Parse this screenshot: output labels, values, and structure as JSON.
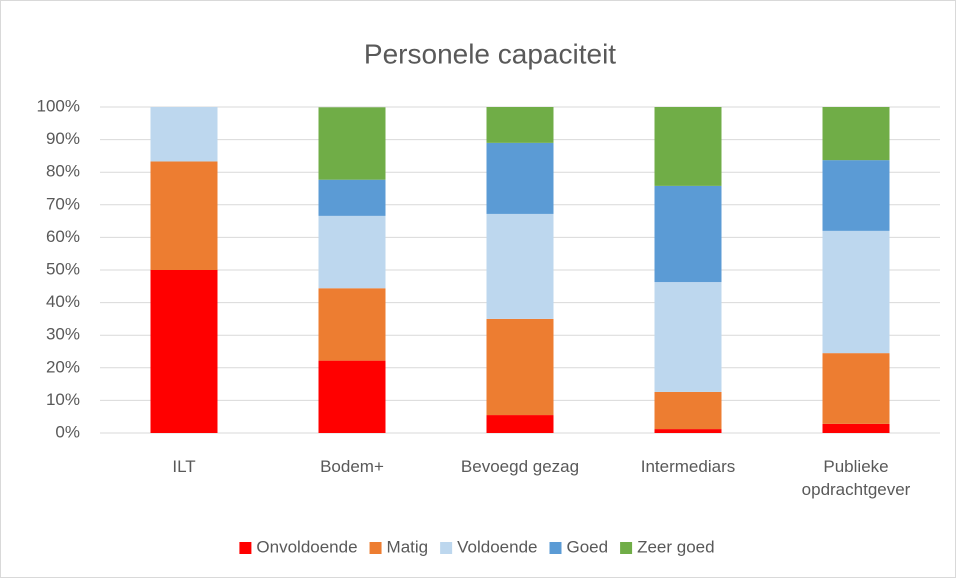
{
  "chart_data": {
    "type": "stacked_bar",
    "title": "Personele capaciteit",
    "categories": [
      "ILT",
      "Bodem+",
      "Bevoegd gezag",
      "Intermediars",
      "Publieke opdrachtgever"
    ],
    "series": [
      {
        "name": "Onvoldoende",
        "color": "#ff0000",
        "values": [
          50,
          22.2,
          5.5,
          1.2,
          2.8
        ]
      },
      {
        "name": "Matig",
        "color": "#ed7d31",
        "values": [
          33.3,
          22.2,
          29.5,
          11.4,
          21.7
        ]
      },
      {
        "name": "Voldoende",
        "color": "#bdd7ee",
        "values": [
          16.7,
          22.2,
          32.2,
          33.7,
          37.5
        ]
      },
      {
        "name": "Goed",
        "color": "#5b9bd5",
        "values": [
          0,
          11.1,
          21.8,
          29.5,
          21.7
        ]
      },
      {
        "name": "Zeer goed",
        "color": "#70ad47",
        "values": [
          0,
          22.2,
          11,
          24.2,
          16.3
        ]
      }
    ],
    "ylim": [
      0,
      100
    ],
    "yticks": [
      {
        "value": 0,
        "label": "0%"
      },
      {
        "value": 10,
        "label": "10%"
      },
      {
        "value": 20,
        "label": "20%"
      },
      {
        "value": 30,
        "label": "30%"
      },
      {
        "value": 40,
        "label": "40%"
      },
      {
        "value": 50,
        "label": "50%"
      },
      {
        "value": 60,
        "label": "60%"
      },
      {
        "value": 70,
        "label": "70%"
      },
      {
        "value": 80,
        "label": "80%"
      },
      {
        "value": 90,
        "label": "90%"
      },
      {
        "value": 100,
        "label": "100%"
      }
    ],
    "grid": true,
    "legend": "bottom"
  }
}
